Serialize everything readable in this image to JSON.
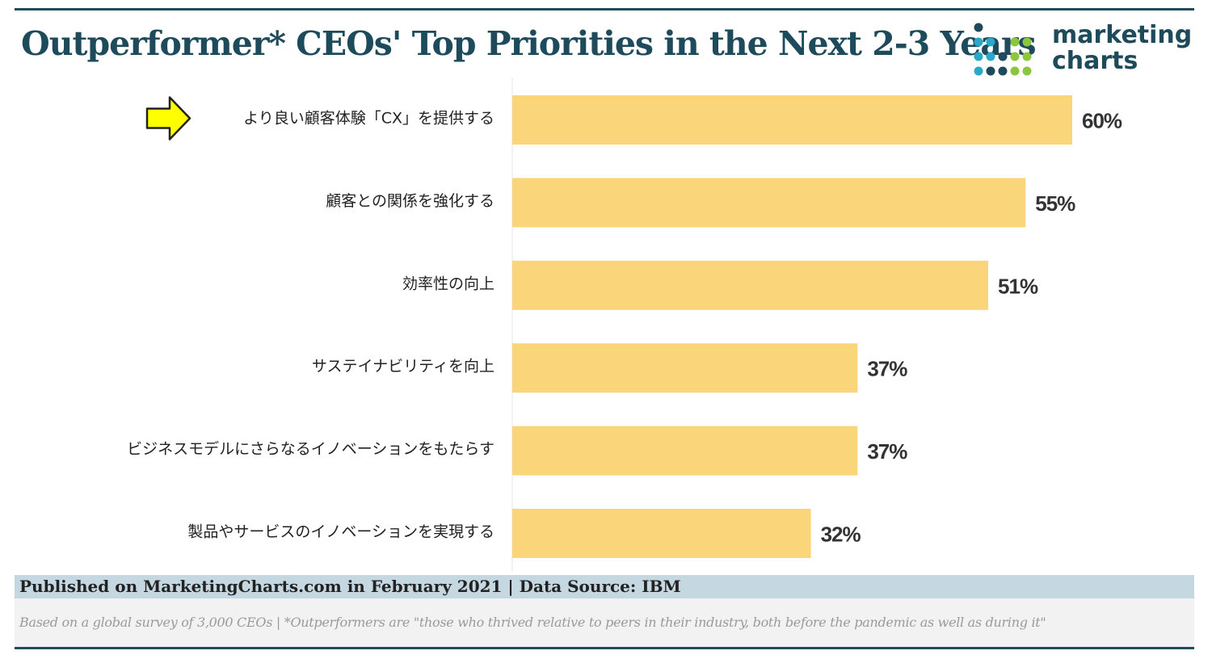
{
  "header": {
    "title": "Outperformer* CEOs' Top Priorities in the Next 2-3 Years"
  },
  "logo": {
    "line1": "marketing",
    "line2": "charts",
    "dot_colors": [
      "#2aa7c9",
      "#8cc63f",
      "#1e4b5b"
    ]
  },
  "chart_data": {
    "type": "bar",
    "orientation": "horizontal",
    "categories": [
      "より良い顧客体験「CX」を提供する",
      "顧客との関係を強化する",
      "効率性の向上",
      "サステイナビリティを向上",
      "ビジネスモデルにさらなるイノベーションをもたらす",
      "製品やサービスのイノベーションを実現する"
    ],
    "values": [
      60,
      55,
      51,
      37,
      37,
      32
    ],
    "value_labels": [
      "60%",
      "55%",
      "51%",
      "37%",
      "37%",
      "32%"
    ],
    "highlighted_category_index": 0,
    "bar_color": "#fbd57a",
    "xlim": [
      0,
      100
    ],
    "grid": false,
    "legend": "none"
  },
  "footer": {
    "source": "Published on MarketingCharts.com in February 2021 | Data Source: IBM",
    "note": "Based on a global survey of 3,000 CEOs | *Outperformers are \"those who thrived relative to peers in their industry, both before the pandemic as well as during it\""
  }
}
